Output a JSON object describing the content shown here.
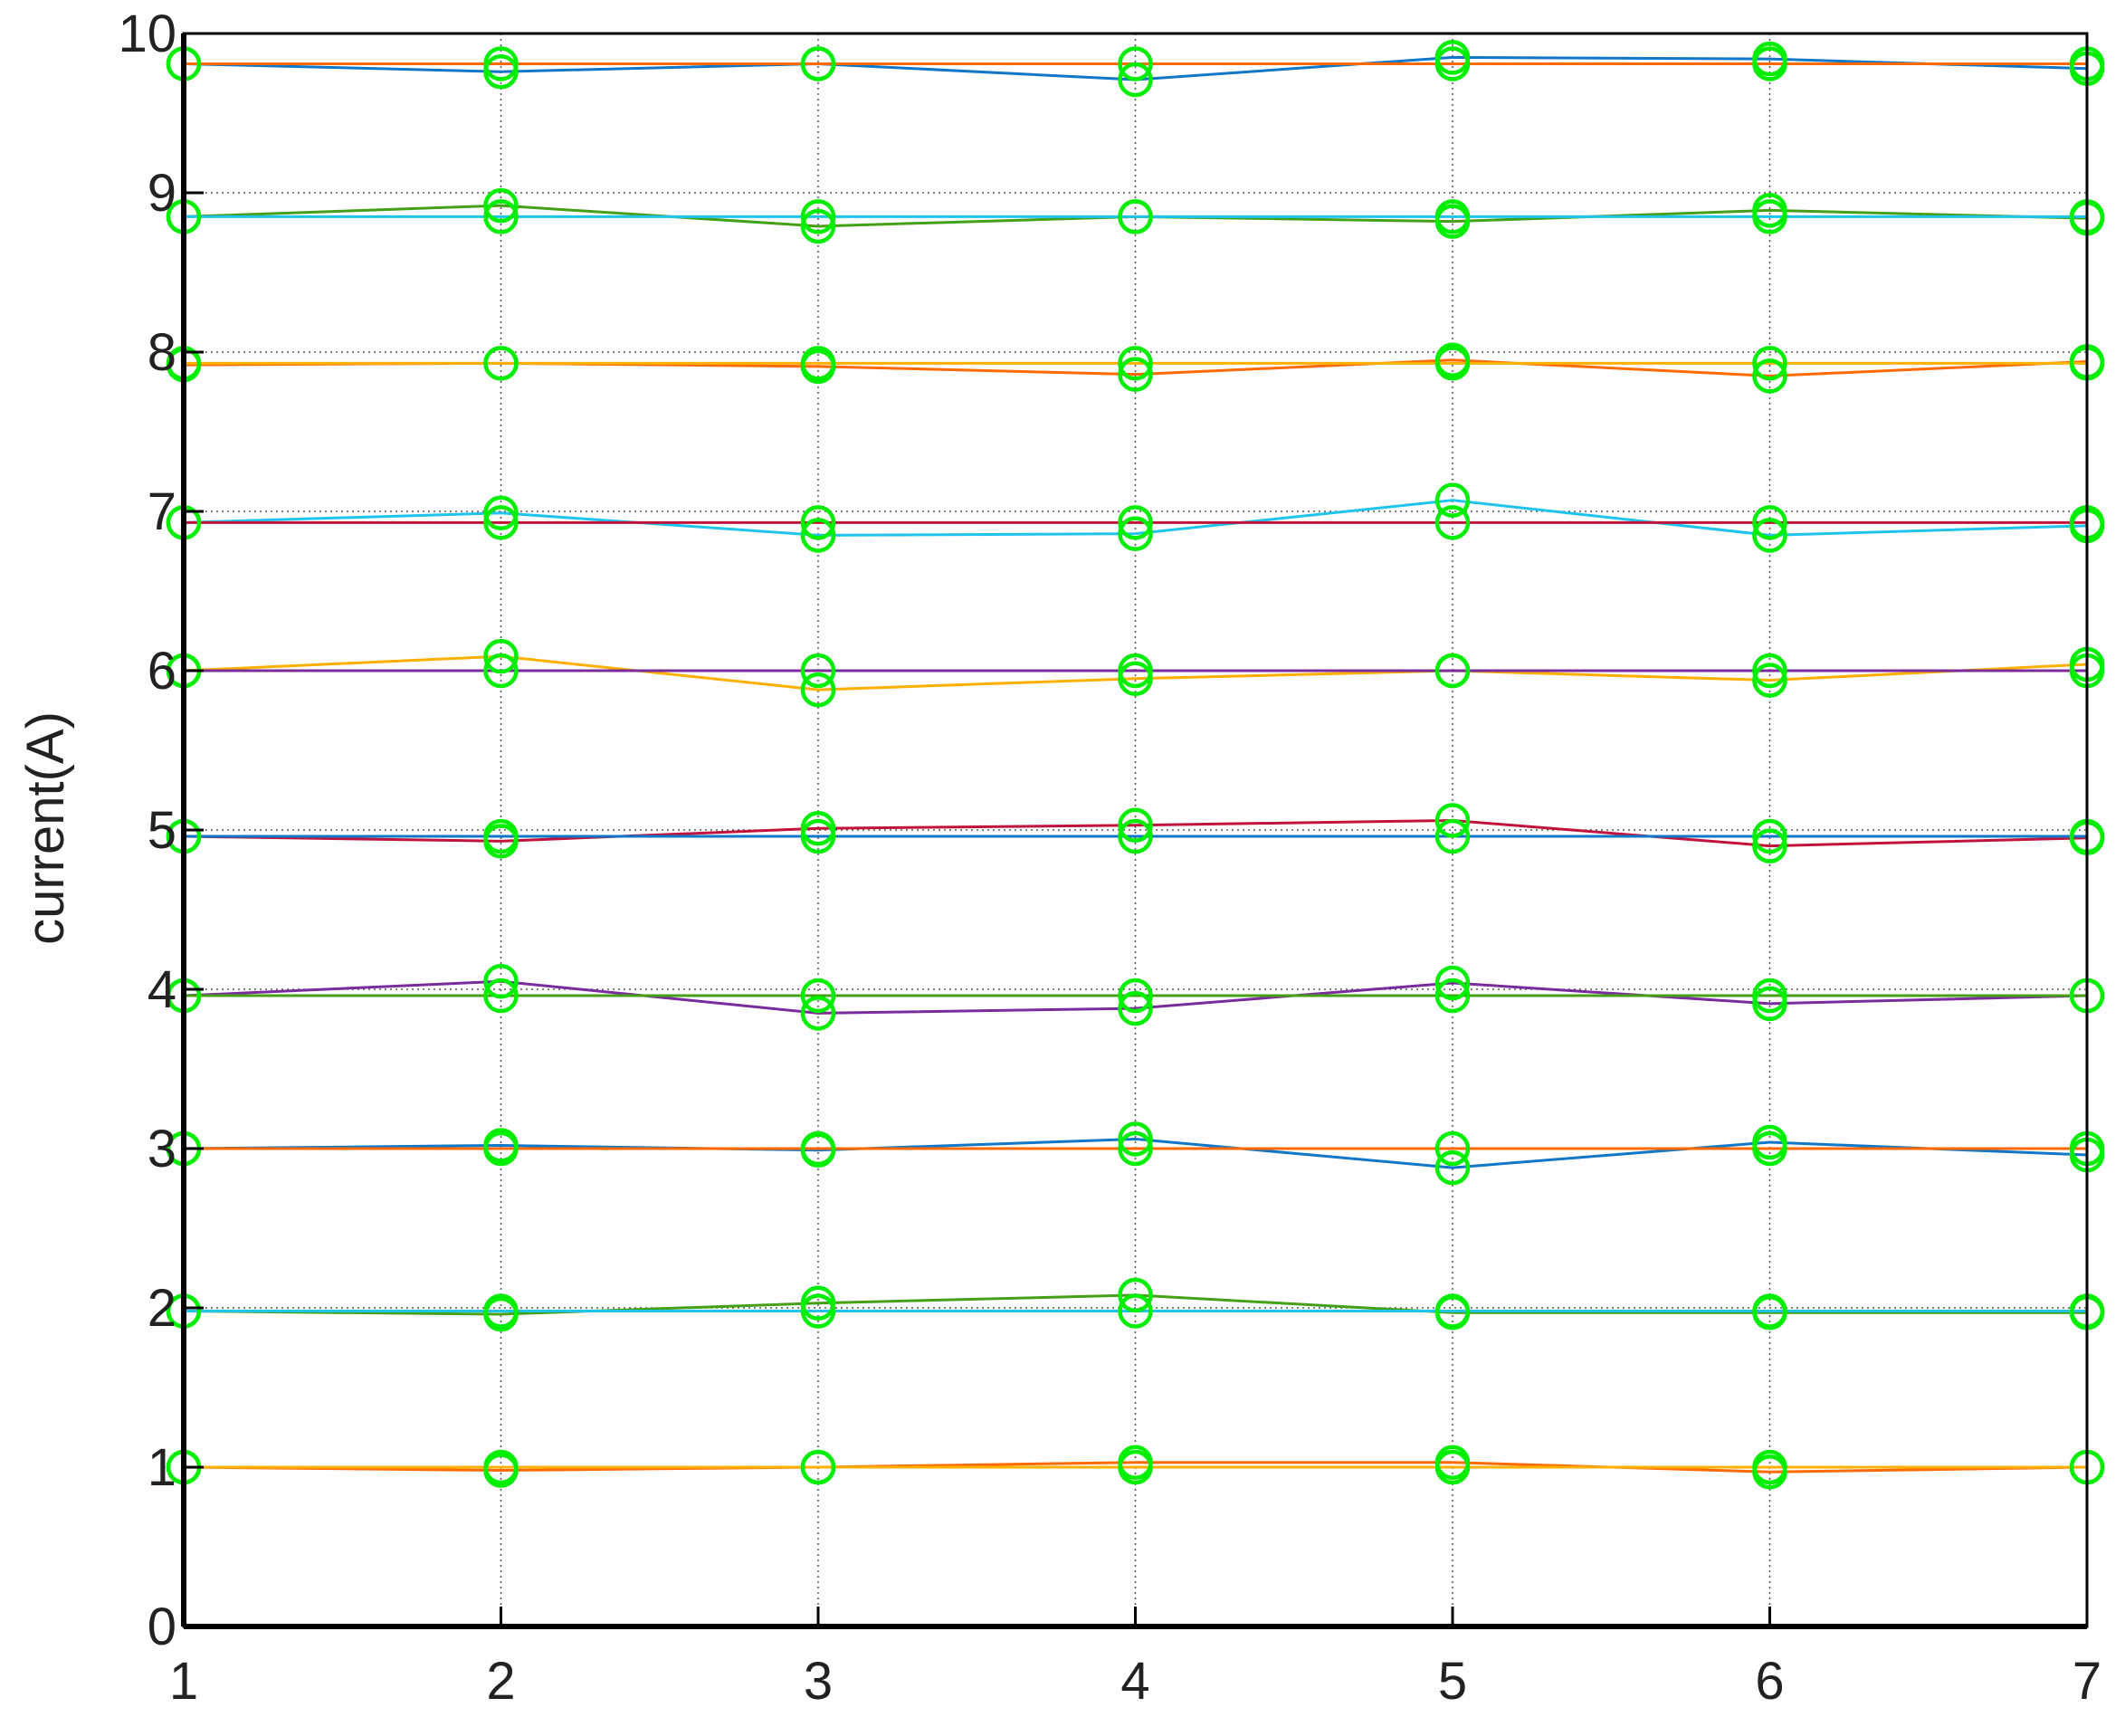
{
  "chart_data": {
    "type": "line",
    "title": "",
    "xlabel": "",
    "ylabel": "current(A)",
    "xlim": [
      1,
      7
    ],
    "ylim": [
      0,
      10
    ],
    "x_ticks": [
      1,
      2,
      3,
      4,
      5,
      6,
      7
    ],
    "y_ticks": [
      0,
      1,
      2,
      3,
      4,
      5,
      6,
      7,
      8,
      9,
      10
    ],
    "grid": true,
    "legend": "none",
    "marker": {
      "shape": "circle",
      "color": "#00ee00"
    },
    "x": [
      1,
      2,
      3,
      4,
      5,
      6,
      7
    ],
    "series": [
      {
        "color": "#ff6a00",
        "values": [
          1.0,
          0.98,
          1.0,
          1.03,
          1.03,
          0.97,
          1.0
        ]
      },
      {
        "color": "#ffb000",
        "values": [
          1.0,
          1.0,
          1.0,
          1.0,
          1.0,
          1.0,
          1.0
        ]
      },
      {
        "color": "#45a017",
        "values": [
          1.98,
          1.96,
          2.03,
          2.08,
          1.97,
          1.97,
          1.97
        ]
      },
      {
        "color": "#1ec4ee",
        "values": [
          1.98,
          1.98,
          1.98,
          1.98,
          1.98,
          1.98,
          1.98
        ]
      },
      {
        "color": "#1077c9",
        "values": [
          3.0,
          3.02,
          2.99,
          3.06,
          2.88,
          3.04,
          2.96
        ]
      },
      {
        "color": "#ff6a00",
        "values": [
          3.0,
          3.0,
          3.0,
          3.0,
          3.0,
          3.0,
          3.0
        ]
      },
      {
        "color": "#7b2c9c",
        "values": [
          3.96,
          4.05,
          3.85,
          3.88,
          4.04,
          3.91,
          3.96
        ]
      },
      {
        "color": "#45a017",
        "values": [
          3.96,
          3.96,
          3.96,
          3.96,
          3.96,
          3.96,
          3.96
        ]
      },
      {
        "color": "#c0143c",
        "values": [
          4.96,
          4.93,
          5.01,
          5.03,
          5.06,
          4.9,
          4.95
        ]
      },
      {
        "color": "#1077c9",
        "values": [
          4.96,
          4.96,
          4.96,
          4.96,
          4.96,
          4.96,
          4.96
        ]
      },
      {
        "color": "#ffb000",
        "values": [
          6.0,
          6.09,
          5.88,
          5.95,
          6.0,
          5.94,
          6.04
        ]
      },
      {
        "color": "#7b2c9c",
        "values": [
          6.0,
          6.0,
          6.0,
          6.0,
          6.0,
          6.0,
          6.0
        ]
      },
      {
        "color": "#1ec4ee",
        "values": [
          6.93,
          6.99,
          6.85,
          6.86,
          7.07,
          6.85,
          6.91
        ]
      },
      {
        "color": "#c0143c",
        "values": [
          6.93,
          6.93,
          6.93,
          6.93,
          6.93,
          6.93,
          6.93
        ]
      },
      {
        "color": "#ff6a00",
        "values": [
          7.92,
          7.93,
          7.91,
          7.86,
          7.95,
          7.85,
          7.94
        ]
      },
      {
        "color": "#ffb000",
        "values": [
          7.93,
          7.93,
          7.93,
          7.93,
          7.93,
          7.93,
          7.93
        ]
      },
      {
        "color": "#45a017",
        "values": [
          8.85,
          8.92,
          8.79,
          8.85,
          8.82,
          8.89,
          8.84
        ]
      },
      {
        "color": "#1ec4ee",
        "values": [
          8.85,
          8.85,
          8.85,
          8.85,
          8.85,
          8.85,
          8.85
        ]
      },
      {
        "color": "#1077c9",
        "values": [
          9.81,
          9.76,
          9.81,
          9.71,
          9.85,
          9.84,
          9.78
        ]
      },
      {
        "color": "#ff6a00",
        "values": [
          9.81,
          9.81,
          9.81,
          9.81,
          9.81,
          9.81,
          9.81
        ]
      }
    ]
  }
}
